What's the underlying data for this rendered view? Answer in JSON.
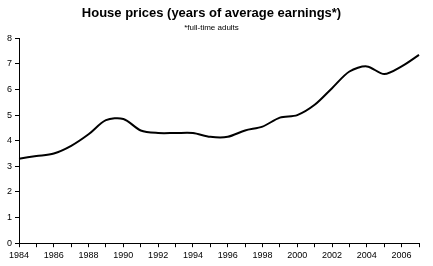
{
  "chart_data": {
    "type": "line",
    "title": "House prices (years of average earnings*)",
    "subtitle": "*full-time adults",
    "categories": [
      "1984",
      null,
      "1986",
      null,
      "1988",
      null,
      "1990",
      null,
      "1992",
      null,
      "1994",
      null,
      "1996",
      null,
      "1998",
      null,
      "2000",
      null,
      "2002",
      null,
      "2004",
      null,
      "2006",
      null
    ],
    "values": [
      3.3,
      3.4,
      3.5,
      3.8,
      4.25,
      4.8,
      4.85,
      4.4,
      4.3,
      4.3,
      4.3,
      4.15,
      4.15,
      4.4,
      4.55,
      4.9,
      5.0,
      5.4,
      6.05,
      6.7,
      6.9,
      6.6,
      6.9,
      7.35
    ],
    "color": "#000000",
    "ylim": [
      0,
      8
    ],
    "yticks": [
      0,
      1,
      2,
      3,
      4,
      5,
      6,
      7,
      8
    ],
    "grid": false
  }
}
